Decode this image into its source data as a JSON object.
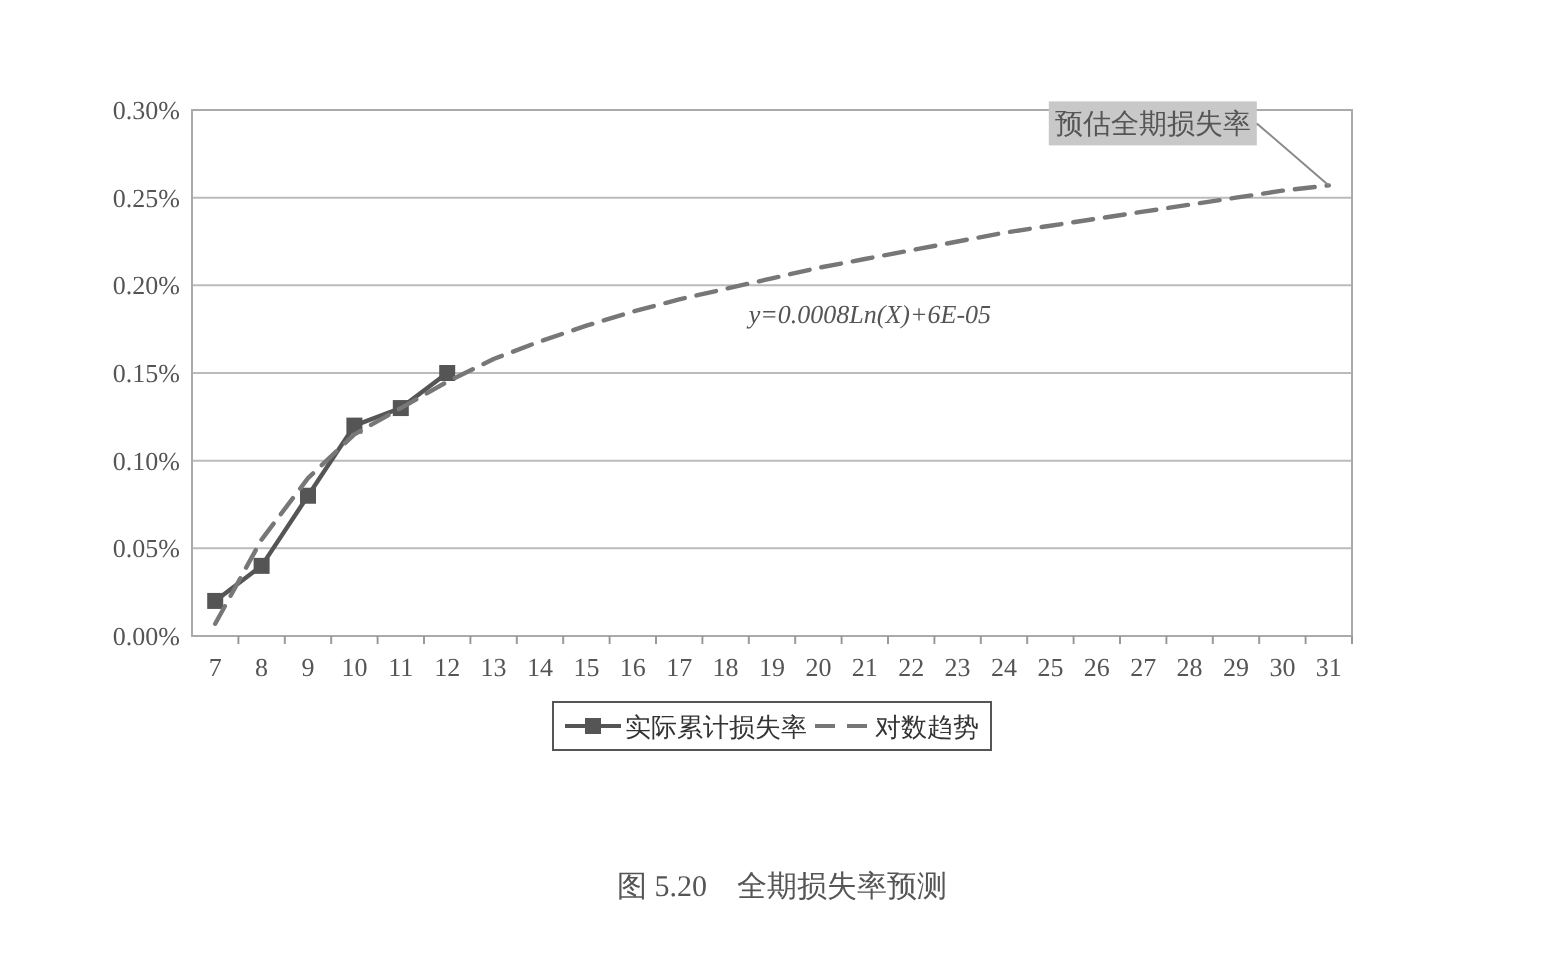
{
  "chart_data": {
    "type": "line",
    "title": "图 5.20　全期损失率预测",
    "categories": [
      "7",
      "8",
      "9",
      "10",
      "11",
      "12",
      "13",
      "14",
      "15",
      "16",
      "17",
      "18",
      "19",
      "20",
      "21",
      "22",
      "23",
      "24",
      "25",
      "26",
      "27",
      "28",
      "29",
      "30",
      "31"
    ],
    "series": [
      {
        "name": "实际累计损失率",
        "color": "#555555",
        "marker": "square",
        "line_style": "solid",
        "values": [
          0.02,
          0.04,
          0.08,
          0.12,
          0.13,
          0.15,
          null,
          null,
          null,
          null,
          null,
          null,
          null,
          null,
          null,
          null,
          null,
          null,
          null,
          null,
          null,
          null,
          null,
          null,
          null
        ]
      },
      {
        "name": "对数趋势",
        "color": "#777777",
        "marker": "none",
        "line_style": "dashed",
        "values": [
          0.007,
          0.055,
          0.09,
          0.115,
          0.13,
          0.145,
          0.158,
          0.168,
          0.177,
          0.185,
          0.192,
          0.198,
          0.204,
          0.21,
          0.215,
          0.22,
          0.225,
          0.23,
          0.234,
          0.238,
          0.242,
          0.246,
          0.25,
          0.254,
          0.257
        ]
      }
    ],
    "ylim": [
      0,
      0.3
    ],
    "yticks": [
      {
        "value": 0,
        "label": "0.00%"
      },
      {
        "value": 0.05,
        "label": "0.05%"
      },
      {
        "value": 0.1,
        "label": "0.10%"
      },
      {
        "value": 0.15,
        "label": "0.15%"
      },
      {
        "value": 0.2,
        "label": "0.20%"
      },
      {
        "value": 0.25,
        "label": "0.25%"
      },
      {
        "value": 0.3,
        "label": "0.30%"
      }
    ],
    "grid": "y",
    "legend": "bottom",
    "annotations": [
      "y=0.0008Ln(X)+6E-05",
      {
        "text": "预估全期损失率",
        "x": "31",
        "y": 0.257
      }
    ]
  }
}
